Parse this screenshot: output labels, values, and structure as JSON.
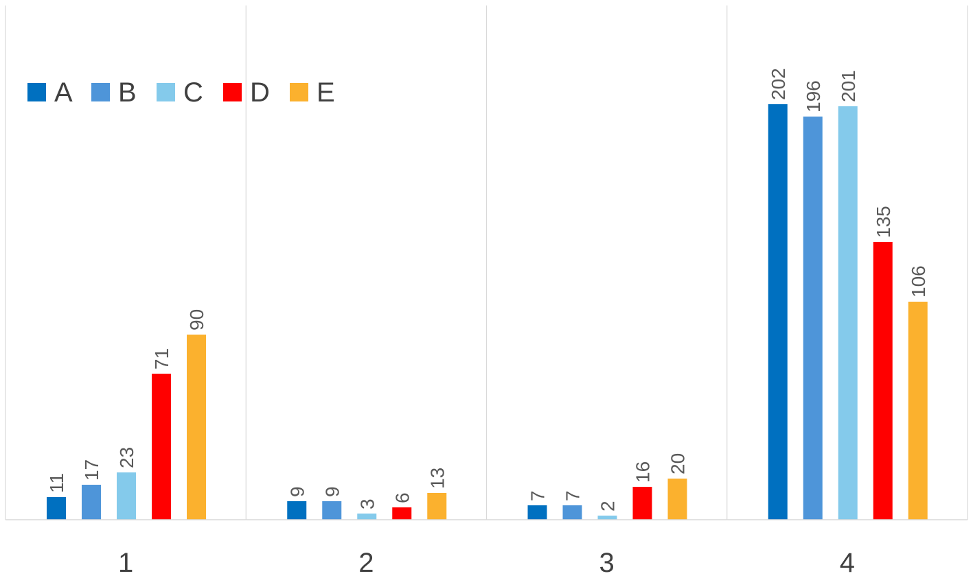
{
  "chart_data": {
    "type": "bar",
    "title": "",
    "xlabel": "",
    "ylabel": "",
    "categories": [
      "1",
      "2",
      "3",
      "4"
    ],
    "series": [
      {
        "name": "A",
        "color": "#0070C0",
        "values": [
          11,
          9,
          7,
          202
        ]
      },
      {
        "name": "B",
        "color": "#4E95D9",
        "values": [
          17,
          9,
          7,
          196
        ]
      },
      {
        "name": "C",
        "color": "#84CAEB",
        "values": [
          23,
          3,
          2,
          201
        ]
      },
      {
        "name": "D",
        "color": "#FF0000",
        "values": [
          71,
          6,
          16,
          135
        ]
      },
      {
        "name": "E",
        "color": "#FBB12E",
        "values": [
          90,
          13,
          20,
          106
        ]
      }
    ],
    "ylim": [
      0,
      250
    ],
    "grid": false,
    "category_separators": true,
    "legend_position": "top-left",
    "data_labels": "rotated-vertical"
  }
}
